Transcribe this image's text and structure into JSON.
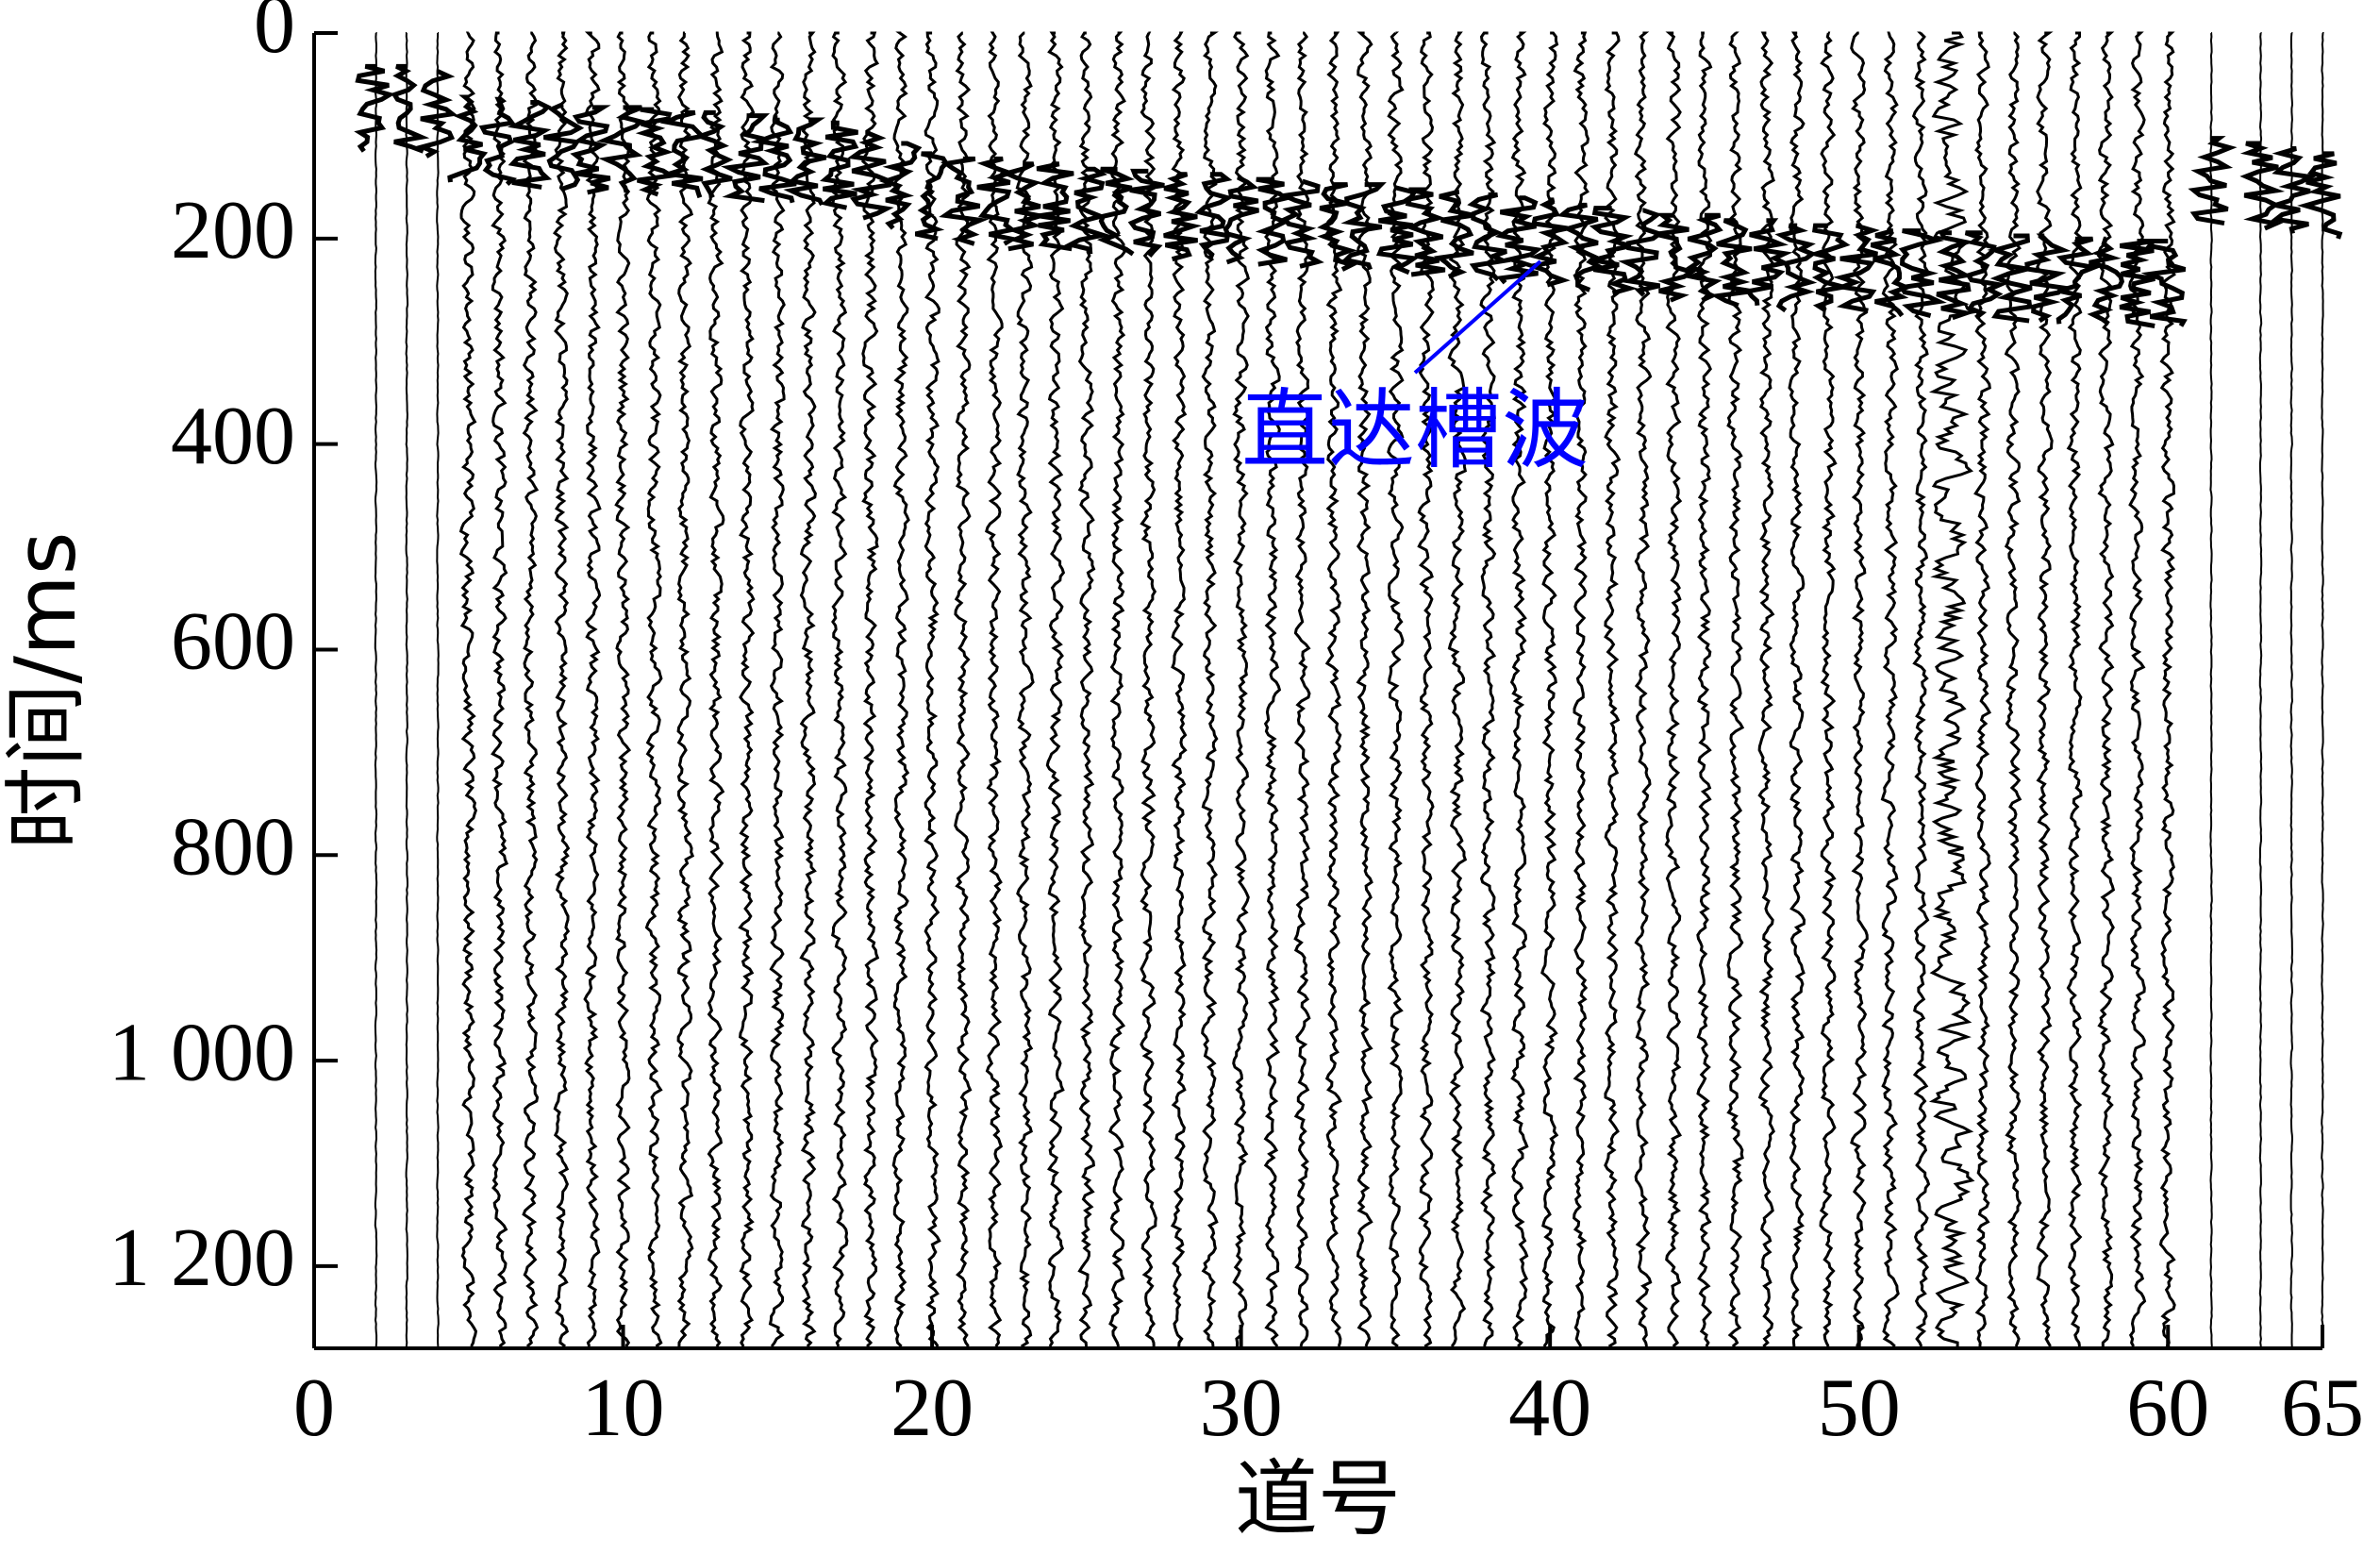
{
  "chart_data": {
    "type": "seismic",
    "xlabel": "道号",
    "ylabel": "时间/ms",
    "annotation": "直达槽波",
    "xlim": [
      0,
      65
    ],
    "xticks": [
      0,
      10,
      20,
      30,
      40,
      50,
      60,
      65
    ],
    "ylim": [
      0,
      1280
    ],
    "yticks": [
      0,
      200,
      400,
      600,
      800,
      {
        "value": 1000,
        "label": "1 000"
      },
      {
        "value": 1200,
        "label": "1 200"
      }
    ],
    "y_inverted": true,
    "color": "#000000",
    "annotation_color": "#0000ff",
    "x": [
      2,
      3,
      4,
      5,
      6,
      7,
      8,
      9,
      10,
      11,
      12,
      13,
      14,
      15,
      16,
      17,
      18,
      19,
      20,
      21,
      22,
      23,
      24,
      25,
      26,
      27,
      28,
      29,
      30,
      31,
      32,
      33,
      34,
      35,
      36,
      37,
      38,
      39,
      40,
      41,
      42,
      43,
      44,
      45,
      46,
      47,
      48,
      49,
      50,
      51,
      52,
      53,
      54,
      55,
      56,
      57,
      58,
      59,
      60,
      61.4,
      63,
      64,
      65
    ],
    "arrival": [
      60,
      60,
      65,
      90,
      92,
      95,
      97,
      100,
      100,
      102,
      105,
      105,
      108,
      110,
      112,
      115,
      125,
      135,
      145,
      150,
      150,
      155,
      155,
      160,
      160,
      162,
      165,
      165,
      168,
      170,
      172,
      175,
      175,
      178,
      180,
      182,
      185,
      188,
      190,
      195,
      198,
      200,
      205,
      205,
      210,
      210,
      215,
      215,
      215,
      220,
      220,
      222,
      222,
      225,
      225,
      228,
      228,
      230,
      230,
      130,
      135,
      140,
      145
    ]
  }
}
